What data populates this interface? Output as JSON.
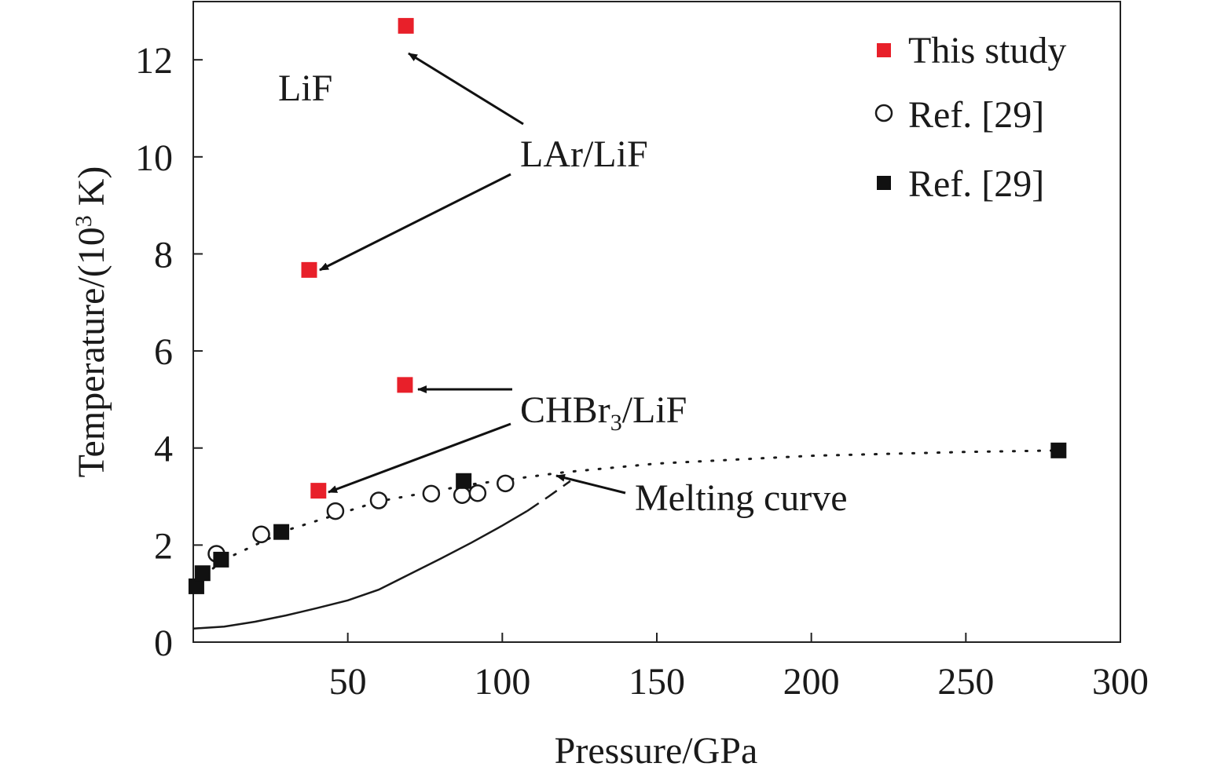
{
  "chart_data": {
    "type": "scatter",
    "title": "",
    "xlabel": "Pressure/GPa",
    "ylabel_prefix": "Temperature/(10",
    "ylabel_sup": "3",
    "ylabel_suffix": " K)",
    "xlim": [
      0,
      300
    ],
    "ylim": [
      0,
      13.2
    ],
    "xticks": [
      50,
      100,
      150,
      200,
      250,
      300
    ],
    "yticks": [
      0,
      2,
      4,
      6,
      8,
      10,
      12
    ],
    "grid": false,
    "legend_position": "top-right",
    "series": [
      {
        "name": "This study",
        "marker": "filled-square",
        "color": "#e8202a",
        "points": [
          [
            68.8,
            12.7
          ],
          [
            37.5,
            7.67
          ],
          [
            68.5,
            5.3
          ],
          [
            40.5,
            3.12
          ]
        ]
      },
      {
        "name": "Ref. [29]",
        "marker": "open-circle",
        "color": "#1a1a1a",
        "points": [
          [
            7.5,
            1.82
          ],
          [
            22,
            2.22
          ],
          [
            46,
            2.7
          ],
          [
            60,
            2.92
          ],
          [
            77,
            3.06
          ],
          [
            87,
            3.03
          ],
          [
            92,
            3.07
          ],
          [
            101,
            3.27
          ]
        ]
      },
      {
        "name": "Ref. [29]",
        "marker": "filled-square",
        "color": "#111111",
        "points": [
          [
            1,
            1.15
          ],
          [
            3,
            1.42
          ],
          [
            9,
            1.7
          ],
          [
            28.5,
            2.27
          ],
          [
            87.5,
            3.32
          ],
          [
            280,
            3.95
          ]
        ]
      }
    ],
    "lines": [
      {
        "name": "dotted-fit",
        "style": "dotted",
        "points": [
          [
            0,
            1.2
          ],
          [
            10,
            1.7
          ],
          [
            30,
            2.3
          ],
          [
            60,
            2.9
          ],
          [
            90,
            3.25
          ],
          [
            120,
            3.5
          ],
          [
            150,
            3.68
          ],
          [
            200,
            3.84
          ],
          [
            250,
            3.92
          ],
          [
            280,
            3.95
          ]
        ]
      },
      {
        "name": "melting-curve-solid",
        "style": "solid",
        "points": [
          [
            0,
            0.28
          ],
          [
            10,
            0.32
          ],
          [
            20,
            0.42
          ],
          [
            30,
            0.55
          ],
          [
            40,
            0.7
          ],
          [
            50,
            0.86
          ],
          [
            60,
            1.08
          ],
          [
            70,
            1.4
          ],
          [
            80,
            1.72
          ],
          [
            90,
            2.05
          ],
          [
            100,
            2.4
          ],
          [
            108,
            2.7
          ]
        ]
      },
      {
        "name": "melting-curve-dashed",
        "style": "dashed",
        "points": [
          [
            108,
            2.7
          ],
          [
            115,
            3.0
          ],
          [
            122,
            3.32
          ]
        ]
      }
    ],
    "annotations": {
      "lif_label": "LiF",
      "lar_label": "LAr/LiF",
      "chbr_main": "CHBr",
      "chbr_sub": "3",
      "chbr_suffix": "/LiF",
      "melting_label": "Melting curve"
    }
  }
}
